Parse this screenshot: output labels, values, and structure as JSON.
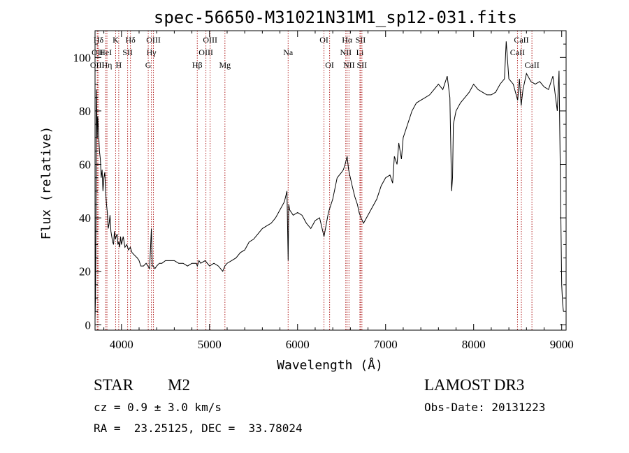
{
  "chart_data": {
    "type": "line",
    "title": "spec-56650-M31021N31M1_sp12-031.fits",
    "xlabel": "Wavelength (Å)",
    "ylabel": "Flux (relative)",
    "xlim": [
      3700,
      9050
    ],
    "ylim": [
      -2,
      110
    ],
    "xticks": [
      4000,
      5000,
      6000,
      7000,
      8000,
      9000
    ],
    "yticks": [
      0,
      20,
      40,
      60,
      80,
      100
    ],
    "grid": false,
    "series": [
      {
        "color": "#000000",
        "x": [
          3700,
          3705,
          3710,
          3715,
          3720,
          3725,
          3730,
          3740,
          3750,
          3760,
          3770,
          3780,
          3790,
          3800,
          3810,
          3820,
          3830,
          3840,
          3850,
          3860,
          3870,
          3880,
          3890,
          3900,
          3910,
          3920,
          3930,
          3940,
          3950,
          3960,
          3970,
          3980,
          3990,
          4000,
          4020,
          4040,
          4060,
          4080,
          4100,
          4120,
          4150,
          4180,
          4200,
          4220,
          4250,
          4280,
          4300,
          4320,
          4340,
          4350,
          4360,
          4380,
          4400,
          4430,
          4460,
          4500,
          4550,
          4600,
          4650,
          4700,
          4750,
          4800,
          4850,
          4861,
          4880,
          4900,
          4950,
          5000,
          5050,
          5100,
          5150,
          5175,
          5200,
          5250,
          5300,
          5350,
          5400,
          5450,
          5500,
          5550,
          5600,
          5650,
          5700,
          5750,
          5800,
          5850,
          5880,
          5893,
          5900,
          5910,
          5950,
          6000,
          6050,
          6100,
          6150,
          6200,
          6250,
          6300,
          6350,
          6400,
          6450,
          6500,
          6520,
          6540,
          6563,
          6580,
          6600,
          6620,
          6650,
          6680,
          6700,
          6720,
          6750,
          6800,
          6850,
          6900,
          6950,
          7000,
          7050,
          7080,
          7100,
          7130,
          7150,
          7180,
          7200,
          7250,
          7300,
          7350,
          7400,
          7450,
          7500,
          7550,
          7600,
          7650,
          7700,
          7730,
          7750,
          7760,
          7770,
          7800,
          7850,
          7900,
          7950,
          8000,
          8050,
          8100,
          8150,
          8200,
          8250,
          8300,
          8350,
          8370,
          8400,
          8450,
          8500,
          8520,
          8540,
          8560,
          8600,
          8650,
          8700,
          8750,
          8800,
          8850,
          8900,
          8950,
          8970,
          9000,
          9010,
          9020
        ],
        "y": [
          2,
          10,
          40,
          88,
          80,
          70,
          78,
          72,
          65,
          62,
          55,
          58,
          50,
          55,
          57,
          50,
          45,
          42,
          36,
          38,
          41,
          35,
          33,
          31,
          30,
          35,
          32,
          33,
          34,
          30,
          31,
          29,
          33,
          30,
          33,
          29,
          30,
          28,
          29,
          27,
          26,
          25,
          24,
          22,
          22,
          23,
          22,
          21,
          36,
          22,
          22,
          21,
          22,
          23,
          23,
          24,
          24,
          24,
          23,
          23,
          22,
          23,
          23,
          22,
          24,
          23,
          24,
          22,
          23,
          22,
          20,
          22,
          23,
          24,
          25,
          27,
          28,
          31,
          32,
          34,
          36,
          37,
          38,
          40,
          43,
          46,
          50,
          24,
          45,
          43,
          41,
          42,
          41,
          38,
          36,
          39,
          40,
          33,
          42,
          47,
          55,
          57,
          58,
          60,
          63,
          58,
          55,
          52,
          48,
          45,
          42,
          40,
          38,
          41,
          44,
          47,
          52,
          55,
          56,
          53,
          63,
          60,
          68,
          62,
          70,
          75,
          80,
          83,
          84,
          85,
          86,
          88,
          90,
          88,
          93,
          85,
          50,
          55,
          75,
          80,
          83,
          85,
          87,
          90,
          88,
          87,
          86,
          86,
          87,
          90,
          92,
          106,
          92,
          90,
          84,
          92,
          82,
          88,
          94,
          91,
          90,
          91,
          89,
          88,
          93,
          80,
          95,
          15,
          8,
          5
        ]
      }
    ],
    "emission_lines": [
      {
        "label": "Hδ",
        "x": 3740,
        "row": 0
      },
      {
        "label": "OII",
        "x": 3727,
        "row": 1
      },
      {
        "label": "OIII",
        "x": 3725,
        "row": 2
      },
      {
        "label": "K",
        "x": 3934,
        "row": 0
      },
      {
        "label": "HeI",
        "x": 3820,
        "row": 1
      },
      {
        "label": "Hη",
        "x": 3835,
        "row": 2
      },
      {
        "label": "SII",
        "x": 4070,
        "row": 1
      },
      {
        "label": "H",
        "x": 3969,
        "row": 2
      },
      {
        "label": "Hδ",
        "x": 4102,
        "row": 0
      },
      {
        "label": "OIII",
        "x": 4363,
        "row": 0
      },
      {
        "label": "Hγ",
        "x": 4340,
        "row": 1
      },
      {
        "label": "G",
        "x": 4304,
        "row": 2
      },
      {
        "label": "OIII",
        "x": 5007,
        "row": 0
      },
      {
        "label": "OIII",
        "x": 4959,
        "row": 1
      },
      {
        "label": "Hβ",
        "x": 4861,
        "row": 2
      },
      {
        "label": "Mg",
        "x": 5175,
        "row": 2
      },
      {
        "label": "Na",
        "x": 5893,
        "row": 1
      },
      {
        "label": "OI",
        "x": 6300,
        "row": 0
      },
      {
        "label": "OI",
        "x": 6364,
        "row": 2
      },
      {
        "label": "Hα",
        "x": 6563,
        "row": 0
      },
      {
        "label": "SII",
        "x": 6716,
        "row": 0
      },
      {
        "label": "NII",
        "x": 6548,
        "row": 1
      },
      {
        "label": "Li",
        "x": 6708,
        "row": 1
      },
      {
        "label": "NII",
        "x": 6584,
        "row": 2
      },
      {
        "label": "SII",
        "x": 6731,
        "row": 2
      },
      {
        "label": "CaII",
        "x": 8542,
        "row": 0
      },
      {
        "label": "CaII",
        "x": 8498,
        "row": 1
      },
      {
        "label": "CaII",
        "x": 8662,
        "row": 2
      }
    ]
  },
  "info": {
    "class": "STAR",
    "subclass": "M2",
    "survey": "LAMOST DR3",
    "cz": "cz = 0.9 ± 3.0 km/s",
    "obs_date": "Obs-Date: 20131223",
    "coords": "RA =  23.25125, DEC =  33.78024"
  }
}
